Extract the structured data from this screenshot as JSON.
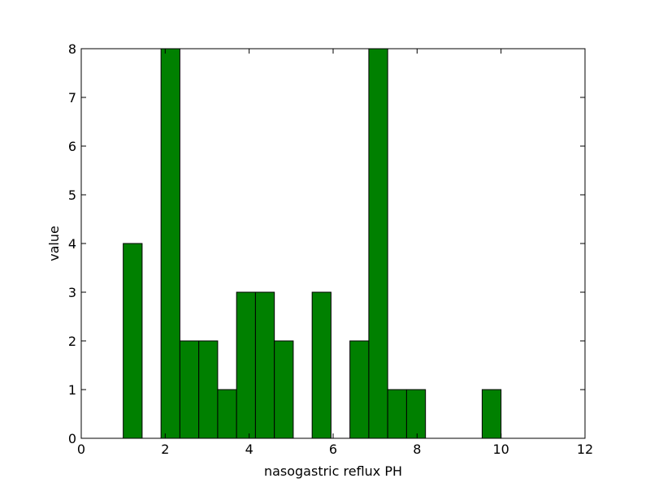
{
  "chart_data": {
    "type": "bar",
    "title": "",
    "xlabel": "nasogastric reflux PH",
    "ylabel": "value",
    "xlim": [
      0,
      12
    ],
    "ylim": [
      0,
      8
    ],
    "xticks": [
      0,
      2,
      4,
      6,
      8,
      10,
      12
    ],
    "yticks": [
      0,
      1,
      2,
      3,
      4,
      5,
      6,
      7,
      8
    ],
    "bar_color": "#008000",
    "edge_color": "#000000",
    "bin_width": 0.45,
    "bins": [
      {
        "x": 1.0,
        "value": 4
      },
      {
        "x": 1.9,
        "value": 8
      },
      {
        "x": 2.35,
        "value": 2
      },
      {
        "x": 2.8,
        "value": 2
      },
      {
        "x": 3.25,
        "value": 1
      },
      {
        "x": 3.7,
        "value": 3
      },
      {
        "x": 4.15,
        "value": 3
      },
      {
        "x": 4.6,
        "value": 2
      },
      {
        "x": 5.5,
        "value": 3
      },
      {
        "x": 6.4,
        "value": 2
      },
      {
        "x": 6.85,
        "value": 8
      },
      {
        "x": 7.3,
        "value": 1
      },
      {
        "x": 7.75,
        "value": 1
      },
      {
        "x": 9.55,
        "value": 1
      }
    ]
  }
}
